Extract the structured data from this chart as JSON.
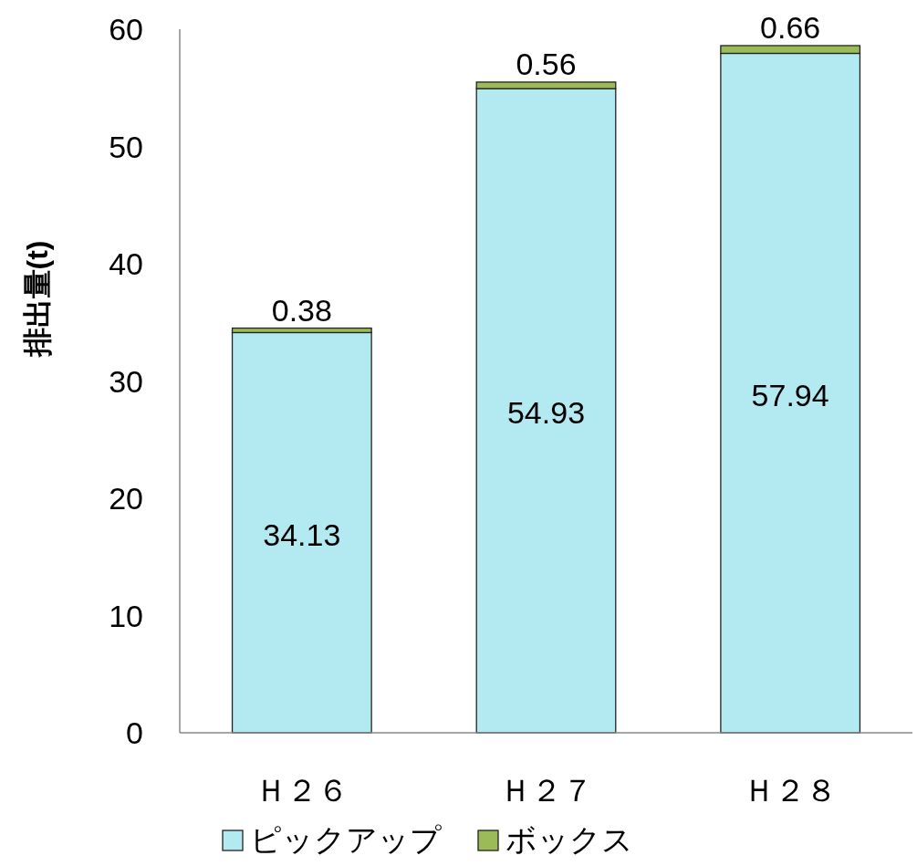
{
  "chart_data": {
    "type": "bar",
    "stacked": true,
    "ylabel": "排出量(t)",
    "categories": [
      "Ｈ２６",
      "Ｈ２７",
      "Ｈ２８"
    ],
    "series": [
      {
        "name": "ピックアップ",
        "color": "#b3e9f0",
        "values": [
          34.13,
          54.93,
          57.94
        ]
      },
      {
        "name": "ボックス",
        "color": "#9bbb59",
        "values": [
          0.38,
          0.56,
          0.66
        ]
      }
    ],
    "ylim": [
      0,
      60
    ],
    "yticks": [
      0,
      10,
      20,
      30,
      40,
      50,
      60
    ],
    "data_labels": true,
    "legend": "bottom"
  }
}
